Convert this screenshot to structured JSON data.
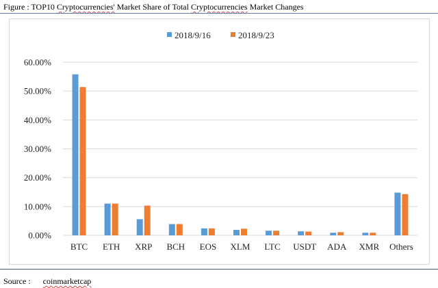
{
  "figure": {
    "title_prefix": "Figure : TOP10 ",
    "title_word1": "Cryptocurrencies'",
    "title_mid": " Market Share of Total ",
    "title_word2": "Cryptocurrencies",
    "title_suffix": " Market Changes"
  },
  "source": {
    "label": "Source :",
    "value": "coinmarketcap"
  },
  "colors": {
    "series1": "#5b9bd5",
    "series2": "#ed7d31",
    "grid": "#d9d9d9",
    "text": "#222222",
    "rule": "#4a6fa5"
  },
  "chart_data": {
    "type": "bar",
    "title": "",
    "xlabel": "",
    "ylabel": "",
    "categories": [
      "BTC",
      "ETH",
      "XRP",
      "BCH",
      "EOS",
      "XLM",
      "LTC",
      "USDT",
      "ADA",
      "XMR",
      "Others"
    ],
    "series": [
      {
        "name": "2018/9/16",
        "values": [
          55.8,
          11.0,
          5.6,
          3.9,
          2.4,
          1.9,
          1.6,
          1.4,
          0.9,
          0.9,
          14.8
        ]
      },
      {
        "name": "2018/9/23",
        "values": [
          51.4,
          11.0,
          10.3,
          3.9,
          2.4,
          2.3,
          1.6,
          1.3,
          1.1,
          0.9,
          14.3
        ]
      }
    ],
    "ylim": [
      0,
      60
    ],
    "ytick_labels": [
      "0.00%",
      "10.00%",
      "20.00%",
      "30.00%",
      "40.00%",
      "50.00%",
      "60.00%"
    ],
    "grid": true,
    "legend": "top-center"
  }
}
